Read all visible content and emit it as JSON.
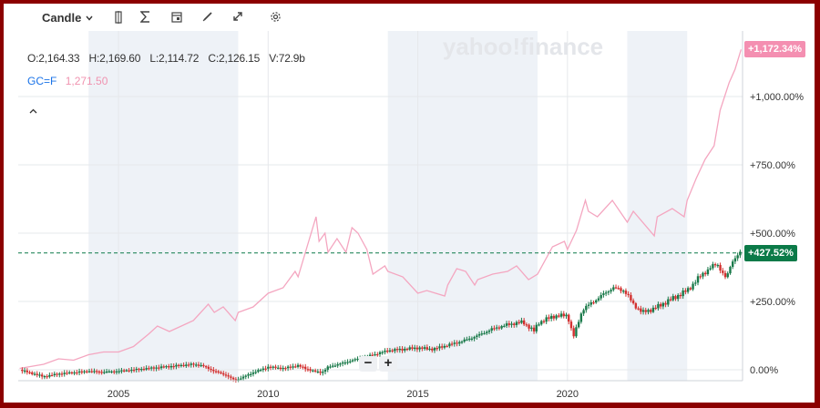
{
  "toolbar": {
    "chart_type_label": "Candle",
    "icons": [
      "chevron-down-icon",
      "split-icon",
      "sigma-icon",
      "calendar-icon",
      "pencil-icon",
      "expand-icon",
      "gear-icon"
    ]
  },
  "ohlc": {
    "open": "O:2,164.33",
    "high": "H:2,169.60",
    "low": "L:2,114.72",
    "close": "C:2,126.15",
    "volume": "V:72.9b"
  },
  "comparison": {
    "symbol": "GC=F",
    "value": "1,271.50",
    "color": "#f093b0"
  },
  "watermark": "yahoo!finance",
  "colors": {
    "up": "#1a7a4a",
    "down": "#d3302f",
    "compare": "#f4a6c0",
    "shade": "#eef2f7",
    "badge_main": "#0b7a48",
    "badge_compare": "#f48fb1"
  },
  "chart_data": {
    "type": "line",
    "title": "",
    "x_ticks": [
      "2005",
      "2010",
      "2015",
      "2020"
    ],
    "x_tick_years": [
      2005,
      2010,
      2015,
      2020
    ],
    "xlim": [
      2001.65,
      2025.85
    ],
    "ylim": [
      -40,
      1240
    ],
    "y_ticks": [
      0,
      250,
      500,
      750,
      1000
    ],
    "y_tick_labels": [
      "0.00%",
      "+250.00%",
      "+500.00%",
      "+750.00%",
      "+1,000.00%"
    ],
    "shaded_periods": [
      [
        2004.0,
        2009.0
      ],
      [
        2014.0,
        2019.0
      ],
      [
        2022.0,
        2024.0
      ]
    ],
    "series": [
      {
        "name": "GC=F",
        "role": "comparison",
        "x": [
          2001.7,
          2002.5,
          2003.0,
          2003.5,
          2004.0,
          2004.5,
          2005.0,
          2005.5,
          2006.0,
          2006.3,
          2006.7,
          2007.0,
          2007.5,
          2008.0,
          2008.2,
          2008.5,
          2008.9,
          2009.0,
          2009.5,
          2010.0,
          2010.5,
          2010.9,
          2011.0,
          2011.3,
          2011.6,
          2011.7,
          2011.9,
          2012.0,
          2012.3,
          2012.6,
          2012.8,
          2013.0,
          2013.3,
          2013.5,
          2013.9,
          2014.0,
          2014.5,
          2015.0,
          2015.3,
          2015.9,
          2016.0,
          2016.3,
          2016.6,
          2016.9,
          2017.0,
          2017.5,
          2018.0,
          2018.3,
          2018.7,
          2019.0,
          2019.5,
          2019.9,
          2020.0,
          2020.3,
          2020.6,
          2020.7,
          2021.0,
          2021.5,
          2022.0,
          2022.2,
          2022.9,
          2023.0,
          2023.5,
          2023.9,
          2024.0,
          2024.3,
          2024.6,
          2024.9,
          2025.1,
          2025.4,
          2025.6,
          2025.8
        ],
        "values": [
          5,
          20,
          40,
          35,
          55,
          65,
          65,
          85,
          130,
          160,
          140,
          155,
          180,
          240,
          210,
          230,
          180,
          210,
          230,
          280,
          300,
          360,
          340,
          450,
          560,
          470,
          500,
          430,
          480,
          430,
          520,
          500,
          440,
          350,
          380,
          360,
          340,
          280,
          290,
          270,
          310,
          370,
          360,
          310,
          330,
          350,
          360,
          380,
          330,
          350,
          450,
          470,
          440,
          510,
          620,
          580,
          560,
          620,
          540,
          580,
          490,
          560,
          590,
          560,
          620,
          700,
          770,
          820,
          950,
          1050,
          1100,
          1172.34
        ]
      },
      {
        "name": "Main",
        "role": "candles",
        "x": [
          2001.7,
          2002.0,
          2002.5,
          2003.0,
          2003.5,
          2004.0,
          2004.5,
          2005.0,
          2005.5,
          2006.0,
          2006.5,
          2007.0,
          2007.5,
          2007.8,
          2008.2,
          2008.6,
          2008.9,
          2009.2,
          2009.5,
          2010.0,
          2010.5,
          2011.0,
          2011.5,
          2011.8,
          2012.0,
          2012.5,
          2013.0,
          2013.5,
          2014.0,
          2014.5,
          2015.0,
          2015.5,
          2016.0,
          2016.5,
          2017.0,
          2017.5,
          2018.0,
          2018.5,
          2018.9,
          2019.0,
          2019.5,
          2020.0,
          2020.2,
          2020.5,
          2021.0,
          2021.5,
          2021.9,
          2022.2,
          2022.5,
          2022.8,
          2023.0,
          2023.5,
          2024.0,
          2024.5,
          2025.0,
          2025.3,
          2025.5,
          2025.8
        ],
        "values": [
          0,
          -10,
          -25,
          -15,
          -10,
          -5,
          -8,
          -5,
          0,
          5,
          10,
          15,
          20,
          15,
          -5,
          -20,
          -40,
          -25,
          -10,
          10,
          5,
          15,
          -5,
          -10,
          10,
          25,
          40,
          55,
          70,
          75,
          80,
          75,
          90,
          105,
          125,
          150,
          165,
          175,
          140,
          170,
          195,
          200,
          120,
          220,
          260,
          300,
          290,
          240,
          210,
          220,
          230,
          260,
          290,
          350,
          390,
          330,
          400,
          427.52
        ]
      }
    ],
    "last_value_labels": {
      "comparison": "+1,172.34%",
      "main": "+427.52%"
    }
  }
}
